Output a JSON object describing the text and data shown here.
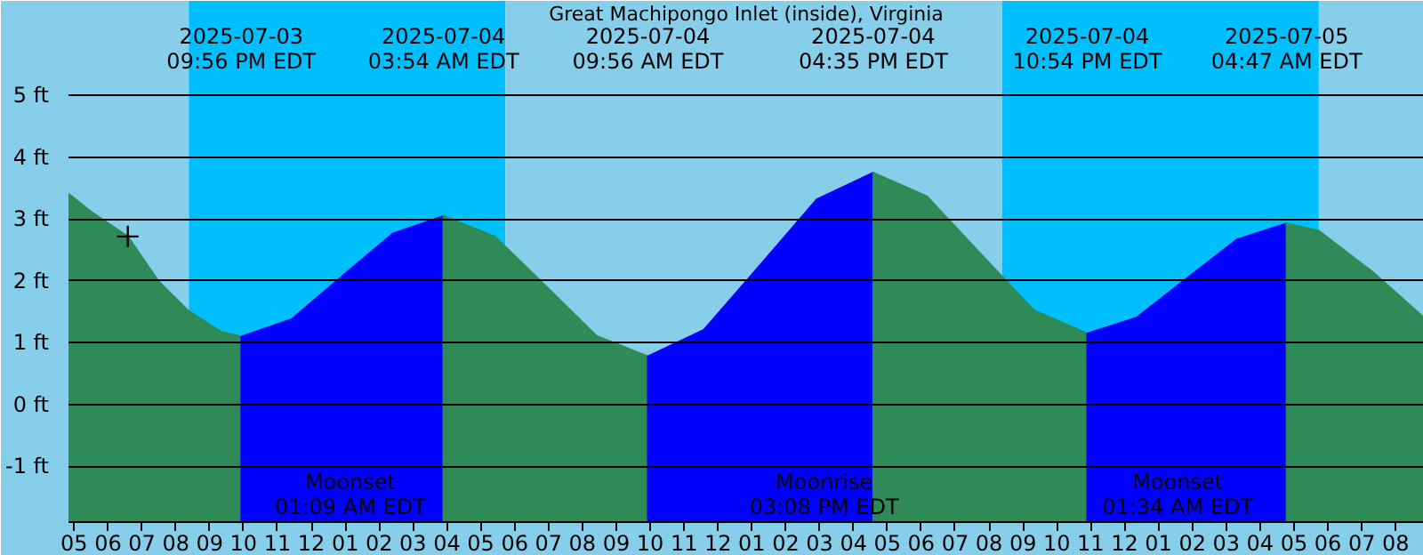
{
  "chart_data": {
    "type": "area",
    "title": "Great Machipongo Inlet (inside), Virginia",
    "xlim": [
      "2025-07-03T16:50",
      "2025-07-05T08:50"
    ],
    "ylim": [
      -1.9,
      6.53
    ],
    "yticks": [
      {
        "value": -1,
        "label": "-1 ft"
      },
      {
        "value": 0,
        "label": "0 ft"
      },
      {
        "value": 1,
        "label": "1 ft"
      },
      {
        "value": 2,
        "label": "2 ft"
      },
      {
        "value": 3,
        "label": "3 ft"
      },
      {
        "value": 4,
        "label": "4 ft"
      },
      {
        "value": 5,
        "label": "5 ft"
      }
    ],
    "xticks": [
      {
        "value": "2025-07-03T17:00",
        "label": "05"
      },
      {
        "value": "2025-07-03T18:00",
        "label": "06"
      },
      {
        "value": "2025-07-03T19:00",
        "label": "07"
      },
      {
        "value": "2025-07-03T20:00",
        "label": "08"
      },
      {
        "value": "2025-07-03T21:00",
        "label": "09"
      },
      {
        "value": "2025-07-03T22:00",
        "label": "10"
      },
      {
        "value": "2025-07-03T23:00",
        "label": "11"
      },
      {
        "value": "2025-07-04T00:00",
        "label": "12"
      },
      {
        "value": "2025-07-04T01:00",
        "label": "01"
      },
      {
        "value": "2025-07-04T02:00",
        "label": "02"
      },
      {
        "value": "2025-07-04T03:00",
        "label": "03"
      },
      {
        "value": "2025-07-04T04:00",
        "label": "04"
      },
      {
        "value": "2025-07-04T05:00",
        "label": "05"
      },
      {
        "value": "2025-07-04T06:00",
        "label": "06"
      },
      {
        "value": "2025-07-04T07:00",
        "label": "07"
      },
      {
        "value": "2025-07-04T08:00",
        "label": "08"
      },
      {
        "value": "2025-07-04T09:00",
        "label": "09"
      },
      {
        "value": "2025-07-04T10:00",
        "label": "10"
      },
      {
        "value": "2025-07-04T11:00",
        "label": "11"
      },
      {
        "value": "2025-07-04T12:00",
        "label": "12"
      },
      {
        "value": "2025-07-04T13:00",
        "label": "01"
      },
      {
        "value": "2025-07-04T14:00",
        "label": "02"
      },
      {
        "value": "2025-07-04T15:00",
        "label": "03"
      },
      {
        "value": "2025-07-04T16:00",
        "label": "04"
      },
      {
        "value": "2025-07-04T17:00",
        "label": "05"
      },
      {
        "value": "2025-07-04T18:00",
        "label": "06"
      },
      {
        "value": "2025-07-04T19:00",
        "label": "07"
      },
      {
        "value": "2025-07-04T20:00",
        "label": "08"
      },
      {
        "value": "2025-07-04T21:00",
        "label": "09"
      },
      {
        "value": "2025-07-04T22:00",
        "label": "10"
      },
      {
        "value": "2025-07-04T23:00",
        "label": "11"
      },
      {
        "value": "2025-07-05T00:00",
        "label": "12"
      },
      {
        "value": "2025-07-05T01:00",
        "label": "01"
      },
      {
        "value": "2025-07-05T02:00",
        "label": "02"
      },
      {
        "value": "2025-07-05T03:00",
        "label": "03"
      },
      {
        "value": "2025-07-05T04:00",
        "label": "04"
      },
      {
        "value": "2025-07-05T05:00",
        "label": "05"
      },
      {
        "value": "2025-07-05T06:00",
        "label": "06"
      },
      {
        "value": "2025-07-05T07:00",
        "label": "07"
      },
      {
        "value": "2025-07-05T08:00",
        "label": "08"
      }
    ],
    "grid": "y",
    "series": [
      {
        "color": "#2e8b57",
        "x": [
          "2025-07-03T16:50",
          "2025-07-03T17:30",
          "2025-07-03T18:35",
          "2025-07-03T19:29",
          "2025-07-03T20:23",
          "2025-07-03T21:20",
          "2025-07-03T21:56"
        ],
        "values": [
          3.41,
          3.12,
          2.72,
          2.0,
          1.51,
          1.18,
          1.1
        ]
      },
      {
        "color": "#0000ff",
        "x": [
          "2025-07-03T21:56",
          "2025-07-03T23:25",
          "2025-07-04T00:55",
          "2025-07-04T02:25",
          "2025-07-04T03:54"
        ],
        "values": [
          1.1,
          1.38,
          2.08,
          2.77,
          3.05
        ]
      },
      {
        "color": "#2e8b57",
        "x": [
          "2025-07-04T03:54",
          "2025-07-04T05:25",
          "2025-07-04T06:55",
          "2025-07-04T08:25",
          "2025-07-04T09:56"
        ],
        "values": [
          3.05,
          2.72,
          1.92,
          1.11,
          0.78
        ]
      },
      {
        "color": "#0000ff",
        "x": [
          "2025-07-04T09:56",
          "2025-07-04T11:35",
          "2025-07-04T13:16",
          "2025-07-04T14:55",
          "2025-07-04T16:35"
        ],
        "values": [
          0.78,
          1.21,
          2.27,
          3.32,
          3.75
        ]
      },
      {
        "color": "#2e8b57",
        "x": [
          "2025-07-04T16:35",
          "2025-07-04T18:10",
          "2025-07-04T19:44",
          "2025-07-04T21:19",
          "2025-07-04T22:54"
        ],
        "values": [
          3.75,
          3.37,
          2.45,
          1.53,
          1.15
        ]
      },
      {
        "color": "#0000ff",
        "x": [
          "2025-07-04T22:54",
          "2025-07-05T00:22",
          "2025-07-05T01:50",
          "2025-07-05T03:19",
          "2025-07-05T04:47"
        ],
        "values": [
          1.15,
          1.41,
          2.04,
          2.67,
          2.93
        ]
      },
      {
        "color": "#2e8b57",
        "x": [
          "2025-07-05T04:47",
          "2025-07-05T05:44",
          "2025-07-05T07:20",
          "2025-07-05T08:50"
        ],
        "values": [
          2.93,
          2.81,
          2.14,
          1.41
        ]
      },
      {
        "type": "scatter",
        "marker": "cross",
        "color": "#000000",
        "x": [
          "2025-07-03T18:35"
        ],
        "values": [
          2.72
        ]
      }
    ],
    "bands": [
      {
        "axis": "x",
        "from": "2025-07-03T16:50",
        "to": "2025-07-03T20:23",
        "label": null,
        "color": "#87ceeb"
      },
      {
        "axis": "x",
        "from": "2025-07-03T20:23",
        "to": "2025-07-04T05:44",
        "label": null,
        "color": "#00bfff"
      },
      {
        "axis": "x",
        "from": "2025-07-04T05:44",
        "to": "2025-07-04T20:23",
        "label": null,
        "color": "#87ceeb"
      },
      {
        "axis": "x",
        "from": "2025-07-04T20:23",
        "to": "2025-07-05T05:44",
        "label": null,
        "color": "#00bfff"
      },
      {
        "axis": "x",
        "from": "2025-07-05T05:44",
        "to": "2025-07-05T08:50",
        "label": null,
        "color": "#87ceeb"
      }
    ],
    "annotations": [
      "2025-07-03\n09:56 PM EDT",
      "2025-07-04\n03:54 AM EDT",
      "2025-07-04\n09:56 AM EDT",
      "2025-07-04\n04:35 PM EDT",
      "2025-07-04\n10:54 PM EDT",
      "2025-07-05\n04:47 AM EDT",
      {
        "text": "Moonset\n01:09 AM EDT",
        "x": "2025-07-04T01:09",
        "y": -1.85
      },
      {
        "text": "Moonrise\n03:08 PM EDT",
        "x": "2025-07-04T15:08",
        "y": -1.85
      },
      {
        "text": "Moonset\n01:34 AM EDT",
        "x": "2025-07-05T01:34",
        "y": -1.85
      }
    ]
  }
}
